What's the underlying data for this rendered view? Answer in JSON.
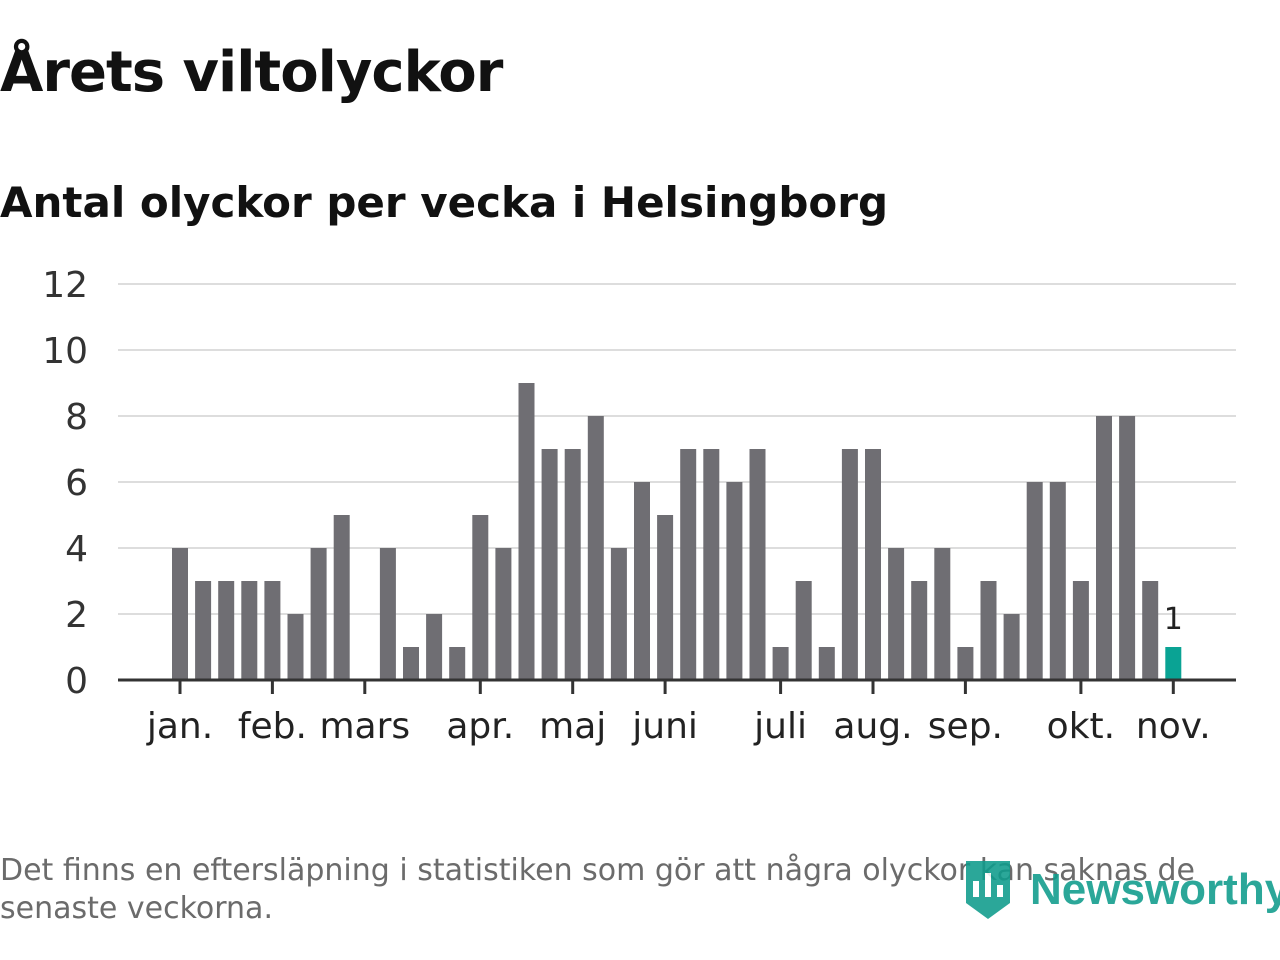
{
  "title": "Årets viltolyckor",
  "subtitle": "Antal olyckor per vecka i Helsingborg",
  "footnote": "Det finns en eftersläpning i statistiken som gör att några olyckor kan saknas de senaste veckorna.",
  "brand": {
    "name": "Newsworthy",
    "icon": "newsworthy-logo-icon",
    "color": "#0e9c8c"
  },
  "chart_data": {
    "type": "bar",
    "title": "Antal olyckor per vecka i Helsingborg",
    "xlabel": "",
    "ylabel": "",
    "ylim": [
      0,
      12
    ],
    "yticks": [
      0,
      2,
      4,
      6,
      8,
      10,
      12
    ],
    "grid": true,
    "legend": "none",
    "colors": {
      "bar": "#6f6e73",
      "highlight": "#0aa394",
      "grid": "#dddddd",
      "axis": "#333333"
    },
    "values": [
      4,
      3,
      3,
      3,
      3,
      2,
      4,
      5,
      0,
      4,
      1,
      2,
      1,
      5,
      4,
      9,
      7,
      7,
      8,
      4,
      6,
      5,
      7,
      7,
      6,
      7,
      1,
      3,
      1,
      7,
      7,
      4,
      3,
      4,
      1,
      3,
      2,
      6,
      6,
      3,
      8,
      8,
      3,
      1
    ],
    "highlight_index": 43,
    "highlight_label": "1",
    "month_labels": [
      {
        "label": "jan.",
        "week": 1
      },
      {
        "label": "feb.",
        "week": 5
      },
      {
        "label": "mars",
        "week": 9
      },
      {
        "label": "apr.",
        "week": 14
      },
      {
        "label": "maj",
        "week": 18
      },
      {
        "label": "juni",
        "week": 22
      },
      {
        "label": "juli",
        "week": 27
      },
      {
        "label": "aug.",
        "week": 31
      },
      {
        "label": "sep.",
        "week": 35
      },
      {
        "label": "okt.",
        "week": 40
      },
      {
        "label": "nov.",
        "week": 44
      }
    ]
  }
}
